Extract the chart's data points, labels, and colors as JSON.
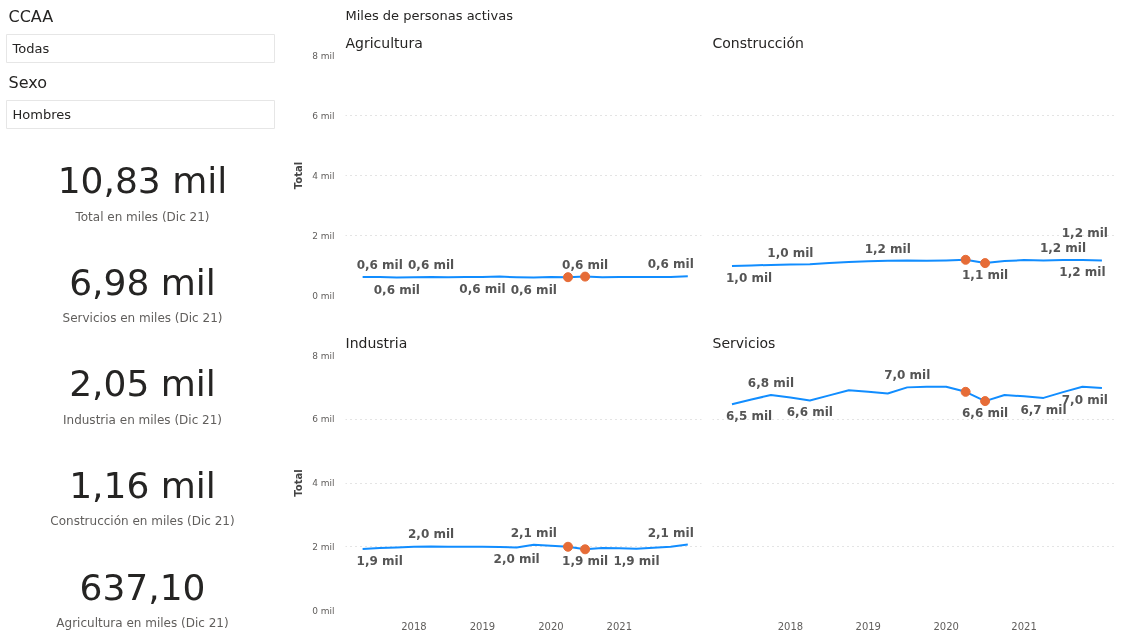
{
  "chart_data": [
    {
      "type": "other",
      "annotations": [
        "CCAA",
        "Todas",
        "Sexo",
        "Hombres",
        "10,83 mil",
        "Total en miles (Dic 21)",
        "6,98 mil",
        "Servicios en miles (Dic 21)",
        "2,05 mil",
        "Industria en miles (Dic 21)",
        "1,16 mil",
        "Construcción en miles (Dic 21)",
        "637,10",
        "Agricultura en miles (Dic 21)"
      ]
    },
    {
      "type": "line",
      "title": "Agricultura",
      "annotations": [
        "Miles de personas activas"
      ],
      "ylabel": "Total",
      "tick_labels": "y",
      "grid": "y",
      "x": [
        2017.25,
        2017.5,
        2017.75,
        2018.0,
        2018.25,
        2018.5,
        2018.75,
        2019.0,
        2019.25,
        2019.5,
        2019.75,
        2020.0,
        2020.25,
        2020.5,
        2020.75,
        2021.0,
        2021.25,
        2021.5,
        2021.75,
        2022.0
      ],
      "xlim": [
        2017.0,
        2022.2
      ],
      "ylim": [
        0,
        8
      ],
      "yticks": [
        {
          "value": 0,
          "label": "0 mil"
        },
        {
          "value": 2,
          "label": "2 mil"
        },
        {
          "value": 4,
          "label": "4 mil"
        },
        {
          "value": 6,
          "label": "6 mil"
        },
        {
          "value": 8,
          "label": "8 mil"
        }
      ],
      "series": [
        {
          "color": "#118dff",
          "values": [
            0.62,
            0.62,
            0.6,
            0.61,
            0.62,
            0.61,
            0.62,
            0.62,
            0.63,
            0.61,
            0.6,
            0.62,
            0.61,
            0.63,
            0.61,
            0.62,
            0.62,
            0.62,
            0.62,
            0.64
          ],
          "value_labels": [
            null,
            "0,6 mil",
            "0,6 mil",
            null,
            "0,6 mil",
            null,
            null,
            "0,6 mil",
            null,
            null,
            "0,6 mil",
            null,
            null,
            "0,6 mil",
            null,
            null,
            null,
            null,
            null,
            "0,6 mil"
          ]
        },
        {
          "type": "scatter",
          "marker": "circle",
          "color": "#e66c37",
          "values": [
            null,
            null,
            null,
            null,
            null,
            null,
            null,
            null,
            null,
            null,
            null,
            null,
            0.61,
            0.63,
            null,
            null,
            null,
            null,
            null,
            null
          ]
        }
      ]
    },
    {
      "type": "line",
      "title": "Construcción",
      "tick_labels": false,
      "grid": "y",
      "x": [
        2017.25,
        2017.5,
        2017.75,
        2018.0,
        2018.25,
        2018.5,
        2018.75,
        2019.0,
        2019.25,
        2019.5,
        2019.75,
        2020.0,
        2020.25,
        2020.5,
        2020.75,
        2021.0,
        2021.25,
        2021.5,
        2021.75,
        2022.0
      ],
      "xlim": [
        2017.0,
        2022.2
      ],
      "ylim": [
        0,
        8
      ],
      "yticks": [
        0,
        2,
        4,
        6,
        8
      ],
      "series": [
        {
          "color": "#118dff",
          "values": [
            0.98,
            1.0,
            1.02,
            1.03,
            1.04,
            1.08,
            1.12,
            1.14,
            1.16,
            1.17,
            1.16,
            1.17,
            1.19,
            1.08,
            1.15,
            1.18,
            1.17,
            1.18,
            1.18,
            1.17
          ],
          "value_labels": [
            "1,0 mil",
            null,
            null,
            "1,0 mil",
            null,
            null,
            null,
            null,
            "1,2 mil",
            null,
            null,
            null,
            null,
            "1,1 mil",
            null,
            null,
            null,
            "1,2 mil",
            "1,2 mil",
            "1,2 mil"
          ]
        },
        {
          "type": "scatter",
          "marker": "circle",
          "color": "#e66c37",
          "values": [
            null,
            null,
            null,
            null,
            null,
            null,
            null,
            null,
            null,
            null,
            null,
            null,
            1.19,
            1.08,
            null,
            null,
            null,
            null,
            null,
            null
          ]
        }
      ]
    },
    {
      "type": "line",
      "title": "Industria",
      "ylabel": "Total",
      "grid": "y",
      "x": [
        2017.25,
        2017.5,
        2017.75,
        2018.0,
        2018.25,
        2018.5,
        2018.75,
        2019.0,
        2019.25,
        2019.5,
        2019.75,
        2020.0,
        2020.25,
        2020.5,
        2020.75,
        2021.0,
        2021.25,
        2021.5,
        2021.75,
        2022.0
      ],
      "xlim": [
        2017.0,
        2022.2
      ],
      "xticks": [
        {
          "value": 2018,
          "label": "2018"
        },
        {
          "value": 2019,
          "label": "2019"
        },
        {
          "value": 2020,
          "label": "2020"
        },
        {
          "value": 2021,
          "label": "2021"
        }
      ],
      "ylim": [
        0,
        8
      ],
      "yticks": [
        {
          "value": 0,
          "label": "0 mil"
        },
        {
          "value": 2,
          "label": "2 mil"
        },
        {
          "value": 4,
          "label": "4 mil"
        },
        {
          "value": 6,
          "label": "6 mil"
        },
        {
          "value": 8,
          "label": "8 mil"
        }
      ],
      "series": [
        {
          "color": "#118dff",
          "values": [
            1.93,
            1.96,
            1.98,
            2.0,
            2.01,
            2.0,
            2.0,
            2.0,
            1.99,
            1.98,
            2.06,
            2.03,
            2.0,
            1.92,
            1.96,
            1.95,
            1.94,
            1.97,
            2.0,
            2.07
          ],
          "value_labels": [
            "1,9 mil",
            null,
            null,
            null,
            "2,0 mil",
            null,
            null,
            null,
            null,
            "2,0 mil",
            "2,1 mil",
            null,
            null,
            "1,9 mil",
            null,
            null,
            "1,9 mil",
            null,
            null,
            "2,1 mil"
          ]
        },
        {
          "type": "scatter",
          "marker": "circle",
          "color": "#e66c37",
          "values": [
            null,
            null,
            null,
            null,
            null,
            null,
            null,
            null,
            null,
            null,
            null,
            null,
            2.0,
            1.92,
            null,
            null,
            null,
            null,
            null,
            null
          ]
        }
      ]
    },
    {
      "type": "line",
      "title": "Servicios",
      "tick_labels": "x",
      "grid": "y",
      "x": [
        2017.25,
        2017.5,
        2017.75,
        2018.0,
        2018.25,
        2018.5,
        2018.75,
        2019.0,
        2019.25,
        2019.5,
        2019.75,
        2020.0,
        2020.25,
        2020.5,
        2020.75,
        2021.0,
        2021.25,
        2021.5,
        2021.75,
        2022.0
      ],
      "xlim": [
        2017.0,
        2022.2
      ],
      "xticks": [
        {
          "value": 2018,
          "label": "2018"
        },
        {
          "value": 2019,
          "label": "2019"
        },
        {
          "value": 2020,
          "label": "2020"
        },
        {
          "value": 2021,
          "label": "2021"
        }
      ],
      "ylim": [
        0,
        8
      ],
      "yticks": [
        0,
        2,
        4,
        6,
        8
      ],
      "series": [
        {
          "color": "#118dff",
          "values": [
            6.47,
            6.62,
            6.76,
            6.68,
            6.59,
            6.75,
            6.91,
            6.86,
            6.81,
            7.0,
            7.02,
            7.02,
            6.86,
            6.57,
            6.76,
            6.72,
            6.67,
            6.85,
            7.02,
            6.98
          ],
          "value_labels": [
            "6,5 mil",
            null,
            "6,8 mil",
            null,
            "6,6 mil",
            null,
            null,
            null,
            null,
            "7,0 mil",
            null,
            null,
            null,
            "6,6 mil",
            null,
            null,
            "6,7 mil",
            null,
            null,
            "7,0 mil"
          ]
        },
        {
          "type": "scatter",
          "marker": "circle",
          "color": "#e66c37",
          "values": [
            null,
            null,
            null,
            null,
            null,
            null,
            null,
            null,
            null,
            null,
            null,
            null,
            6.86,
            6.57,
            null,
            null,
            null,
            null,
            null,
            null
          ]
        }
      ]
    }
  ]
}
